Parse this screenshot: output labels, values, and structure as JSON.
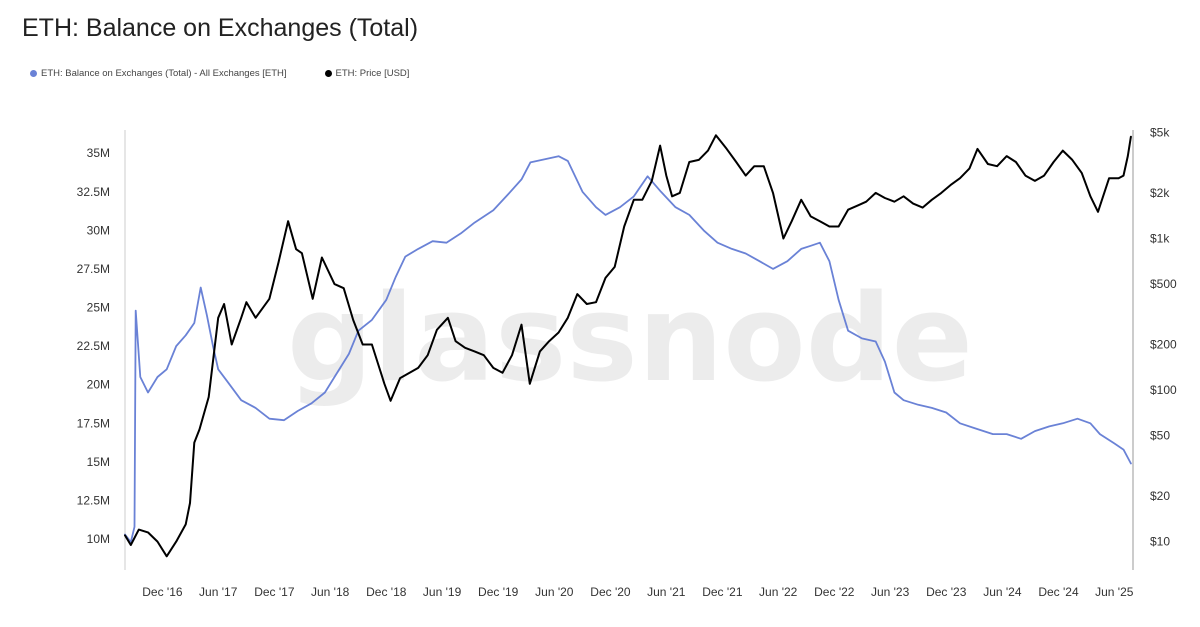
{
  "title": "ETH: Balance on Exchanges (Total)",
  "legend": [
    {
      "label": "ETH: Balance on Exchanges (Total) - All Exchanges [ETH]",
      "color": "#6a82d6"
    },
    {
      "label": "ETH: Price [USD]",
      "color": "#000000"
    }
  ],
  "watermark": "glassnode",
  "chart_data": {
    "type": "line",
    "x_axis": {
      "range": [
        "2016-08-01",
        "2025-08-01"
      ],
      "tick_labels": [
        {
          "label": "Dec '16",
          "date": "2016-12-01"
        },
        {
          "label": "Jun '17",
          "date": "2017-06-01"
        },
        {
          "label": "Dec '17",
          "date": "2017-12-01"
        },
        {
          "label": "Jun '18",
          "date": "2018-06-01"
        },
        {
          "label": "Dec '18",
          "date": "2018-12-01"
        },
        {
          "label": "Jun '19",
          "date": "2019-06-01"
        },
        {
          "label": "Dec '19",
          "date": "2019-12-01"
        },
        {
          "label": "Jun '20",
          "date": "2020-06-01"
        },
        {
          "label": "Dec '20",
          "date": "2020-12-01"
        },
        {
          "label": "Jun '21",
          "date": "2021-06-01"
        },
        {
          "label": "Dec '21",
          "date": "2021-12-01"
        },
        {
          "label": "Jun '22",
          "date": "2022-06-01"
        },
        {
          "label": "Dec '22",
          "date": "2022-12-01"
        },
        {
          "label": "Jun '23",
          "date": "2023-06-01"
        },
        {
          "label": "Dec '23",
          "date": "2023-12-01"
        },
        {
          "label": "Jun '24",
          "date": "2024-06-01"
        },
        {
          "label": "Dec '24",
          "date": "2024-12-01"
        },
        {
          "label": "Jun '25",
          "date": "2025-06-01"
        }
      ]
    },
    "y_left": {
      "scale": "linear",
      "range": [
        8000000,
        36500000
      ],
      "tick_labels": [
        {
          "label": "10M",
          "value": 10000000
        },
        {
          "label": "12.5M",
          "value": 12500000
        },
        {
          "label": "15M",
          "value": 15000000
        },
        {
          "label": "17.5M",
          "value": 17500000
        },
        {
          "label": "20M",
          "value": 20000000
        },
        {
          "label": "22.5M",
          "value": 22500000
        },
        {
          "label": "25M",
          "value": 25000000
        },
        {
          "label": "27.5M",
          "value": 27500000
        },
        {
          "label": "30M",
          "value": 30000000
        },
        {
          "label": "32.5M",
          "value": 32500000
        },
        {
          "label": "35M",
          "value": 35000000
        }
      ]
    },
    "y_right": {
      "scale": "log",
      "range": [
        6.5,
        5200
      ],
      "tick_labels": [
        {
          "label": "$10",
          "value": 10
        },
        {
          "label": "$20",
          "value": 20
        },
        {
          "label": "$50",
          "value": 50
        },
        {
          "label": "$100",
          "value": 100
        },
        {
          "label": "$200",
          "value": 200
        },
        {
          "label": "$500",
          "value": 500
        },
        {
          "label": "$1k",
          "value": 1000
        },
        {
          "label": "$2k",
          "value": 2000
        },
        {
          "label": "$5k",
          "value": 5000
        }
      ]
    },
    "series": [
      {
        "name": "ETH: Balance on Exchanges (Total) - All Exchanges [ETH]",
        "axis": "left",
        "color": "#6a82d6",
        "points": [
          [
            "2016-08-01",
            10300000
          ],
          [
            "2016-08-20",
            9800000
          ],
          [
            "2016-09-01",
            10800000
          ],
          [
            "2016-09-05",
            24800000
          ],
          [
            "2016-09-20",
            20500000
          ],
          [
            "2016-10-15",
            19500000
          ],
          [
            "2016-11-15",
            20500000
          ],
          [
            "2016-12-15",
            21000000
          ],
          [
            "2017-01-15",
            22500000
          ],
          [
            "2017-02-15",
            23200000
          ],
          [
            "2017-03-15",
            24000000
          ],
          [
            "2017-04-05",
            26300000
          ],
          [
            "2017-04-25",
            24500000
          ],
          [
            "2017-05-15",
            22500000
          ],
          [
            "2017-06-01",
            21000000
          ],
          [
            "2017-07-01",
            20200000
          ],
          [
            "2017-08-15",
            19000000
          ],
          [
            "2017-10-01",
            18500000
          ],
          [
            "2017-11-15",
            17800000
          ],
          [
            "2018-01-01",
            17700000
          ],
          [
            "2018-02-15",
            18300000
          ],
          [
            "2018-04-01",
            18800000
          ],
          [
            "2018-05-15",
            19500000
          ],
          [
            "2018-06-15",
            20500000
          ],
          [
            "2018-08-01",
            22000000
          ],
          [
            "2018-09-01",
            23500000
          ],
          [
            "2018-10-15",
            24200000
          ],
          [
            "2018-12-01",
            25500000
          ],
          [
            "2019-01-01",
            27000000
          ],
          [
            "2019-02-01",
            28300000
          ],
          [
            "2019-03-15",
            28800000
          ],
          [
            "2019-05-01",
            29300000
          ],
          [
            "2019-06-15",
            29200000
          ],
          [
            "2019-08-01",
            29800000
          ],
          [
            "2019-09-15",
            30500000
          ],
          [
            "2019-11-15",
            31300000
          ],
          [
            "2020-01-01",
            32300000
          ],
          [
            "2020-02-15",
            33300000
          ],
          [
            "2020-03-15",
            34400000
          ],
          [
            "2020-05-01",
            34600000
          ],
          [
            "2020-06-15",
            34800000
          ],
          [
            "2020-07-15",
            34500000
          ],
          [
            "2020-09-01",
            32500000
          ],
          [
            "2020-10-15",
            31500000
          ],
          [
            "2020-11-15",
            31000000
          ],
          [
            "2021-01-01",
            31500000
          ],
          [
            "2021-02-15",
            32200000
          ],
          [
            "2021-04-01",
            33500000
          ],
          [
            "2021-05-15",
            32500000
          ],
          [
            "2021-07-01",
            31500000
          ],
          [
            "2021-08-15",
            31000000
          ],
          [
            "2021-10-01",
            30000000
          ],
          [
            "2021-11-15",
            29200000
          ],
          [
            "2022-01-01",
            28800000
          ],
          [
            "2022-02-15",
            28500000
          ],
          [
            "2022-04-01",
            28000000
          ],
          [
            "2022-05-15",
            27500000
          ],
          [
            "2022-07-01",
            28000000
          ],
          [
            "2022-08-15",
            28800000
          ],
          [
            "2022-09-15",
            29000000
          ],
          [
            "2022-10-15",
            29200000
          ],
          [
            "2022-11-15",
            28000000
          ],
          [
            "2022-12-15",
            25500000
          ],
          [
            "2023-01-15",
            23500000
          ],
          [
            "2023-03-01",
            23000000
          ],
          [
            "2023-04-15",
            22800000
          ],
          [
            "2023-05-15",
            21500000
          ],
          [
            "2023-06-15",
            19500000
          ],
          [
            "2023-07-15",
            19000000
          ],
          [
            "2023-09-01",
            18700000
          ],
          [
            "2023-10-15",
            18500000
          ],
          [
            "2023-12-01",
            18200000
          ],
          [
            "2024-01-15",
            17500000
          ],
          [
            "2024-03-01",
            17200000
          ],
          [
            "2024-05-01",
            16800000
          ],
          [
            "2024-06-15",
            16800000
          ],
          [
            "2024-08-01",
            16500000
          ],
          [
            "2024-09-15",
            17000000
          ],
          [
            "2024-11-01",
            17300000
          ],
          [
            "2024-12-15",
            17500000
          ],
          [
            "2025-02-01",
            17800000
          ],
          [
            "2025-03-15",
            17500000
          ],
          [
            "2025-04-15",
            16800000
          ],
          [
            "2025-06-01",
            16200000
          ],
          [
            "2025-07-01",
            15800000
          ],
          [
            "2025-07-25",
            14900000
          ]
        ]
      },
      {
        "name": "ETH: Price [USD]",
        "axis": "right",
        "color": "#000000",
        "points": [
          [
            "2016-08-01",
            11
          ],
          [
            "2016-08-20",
            9.5
          ],
          [
            "2016-09-15",
            12
          ],
          [
            "2016-10-15",
            11.5
          ],
          [
            "2016-11-15",
            10
          ],
          [
            "2016-12-15",
            8
          ],
          [
            "2017-01-15",
            10
          ],
          [
            "2017-02-15",
            13
          ],
          [
            "2017-03-01",
            18
          ],
          [
            "2017-03-15",
            45
          ],
          [
            "2017-04-01",
            55
          ],
          [
            "2017-05-01",
            90
          ],
          [
            "2017-06-01",
            300
          ],
          [
            "2017-06-20",
            370
          ],
          [
            "2017-07-15",
            200
          ],
          [
            "2017-08-15",
            300
          ],
          [
            "2017-09-01",
            380
          ],
          [
            "2017-10-01",
            300
          ],
          [
            "2017-11-15",
            400
          ],
          [
            "2017-12-15",
            700
          ],
          [
            "2018-01-15",
            1300
          ],
          [
            "2018-02-10",
            850
          ],
          [
            "2018-03-01",
            800
          ],
          [
            "2018-04-05",
            400
          ],
          [
            "2018-05-05",
            750
          ],
          [
            "2018-06-15",
            500
          ],
          [
            "2018-07-15",
            470
          ],
          [
            "2018-08-15",
            290
          ],
          [
            "2018-09-15",
            200
          ],
          [
            "2018-10-15",
            200
          ],
          [
            "2018-11-25",
            110
          ],
          [
            "2018-12-15",
            85
          ],
          [
            "2019-01-15",
            120
          ],
          [
            "2019-02-15",
            130
          ],
          [
            "2019-03-15",
            140
          ],
          [
            "2019-04-15",
            170
          ],
          [
            "2019-05-15",
            250
          ],
          [
            "2019-06-20",
            300
          ],
          [
            "2019-07-15",
            210
          ],
          [
            "2019-08-15",
            190
          ],
          [
            "2019-09-15",
            180
          ],
          [
            "2019-10-15",
            170
          ],
          [
            "2019-11-15",
            140
          ],
          [
            "2019-12-15",
            130
          ],
          [
            "2020-01-15",
            170
          ],
          [
            "2020-02-15",
            270
          ],
          [
            "2020-03-13",
            110
          ],
          [
            "2020-04-15",
            180
          ],
          [
            "2020-05-15",
            210
          ],
          [
            "2020-06-15",
            240
          ],
          [
            "2020-07-15",
            300
          ],
          [
            "2020-08-15",
            430
          ],
          [
            "2020-09-15",
            370
          ],
          [
            "2020-10-15",
            380
          ],
          [
            "2020-11-15",
            550
          ],
          [
            "2020-12-15",
            650
          ],
          [
            "2021-01-15",
            1200
          ],
          [
            "2021-02-15",
            1800
          ],
          [
            "2021-03-15",
            1800
          ],
          [
            "2021-04-15",
            2400
          ],
          [
            "2021-05-12",
            4100
          ],
          [
            "2021-06-01",
            2600
          ],
          [
            "2021-06-20",
            1900
          ],
          [
            "2021-07-15",
            2000
          ],
          [
            "2021-08-15",
            3200
          ],
          [
            "2021-09-15",
            3300
          ],
          [
            "2021-10-15",
            3800
          ],
          [
            "2021-11-10",
            4800
          ],
          [
            "2021-12-15",
            3900
          ],
          [
            "2022-01-15",
            3200
          ],
          [
            "2022-02-15",
            2600
          ],
          [
            "2022-03-15",
            3000
          ],
          [
            "2022-04-15",
            3000
          ],
          [
            "2022-05-15",
            2000
          ],
          [
            "2022-06-18",
            1000
          ],
          [
            "2022-07-15",
            1300
          ],
          [
            "2022-08-15",
            1800
          ],
          [
            "2022-09-15",
            1400
          ],
          [
            "2022-10-15",
            1300
          ],
          [
            "2022-11-15",
            1200
          ],
          [
            "2022-12-15",
            1200
          ],
          [
            "2023-01-15",
            1550
          ],
          [
            "2023-02-15",
            1650
          ],
          [
            "2023-03-15",
            1750
          ],
          [
            "2023-04-15",
            2000
          ],
          [
            "2023-05-15",
            1850
          ],
          [
            "2023-06-15",
            1750
          ],
          [
            "2023-07-15",
            1900
          ],
          [
            "2023-08-15",
            1700
          ],
          [
            "2023-09-15",
            1600
          ],
          [
            "2023-10-15",
            1800
          ],
          [
            "2023-11-15",
            2000
          ],
          [
            "2023-12-15",
            2250
          ],
          [
            "2024-01-15",
            2500
          ],
          [
            "2024-02-15",
            2900
          ],
          [
            "2024-03-12",
            3900
          ],
          [
            "2024-04-15",
            3100
          ],
          [
            "2024-05-15",
            3000
          ],
          [
            "2024-06-15",
            3500
          ],
          [
            "2024-07-15",
            3200
          ],
          [
            "2024-08-15",
            2600
          ],
          [
            "2024-09-15",
            2400
          ],
          [
            "2024-10-15",
            2600
          ],
          [
            "2024-11-15",
            3200
          ],
          [
            "2024-12-15",
            3800
          ],
          [
            "2025-01-15",
            3300
          ],
          [
            "2025-02-15",
            2700
          ],
          [
            "2025-03-15",
            1900
          ],
          [
            "2025-04-09",
            1500
          ],
          [
            "2025-05-15",
            2500
          ],
          [
            "2025-06-15",
            2500
          ],
          [
            "2025-07-01",
            2600
          ],
          [
            "2025-07-15",
            3500
          ],
          [
            "2025-07-25",
            4700
          ]
        ]
      }
    ]
  }
}
